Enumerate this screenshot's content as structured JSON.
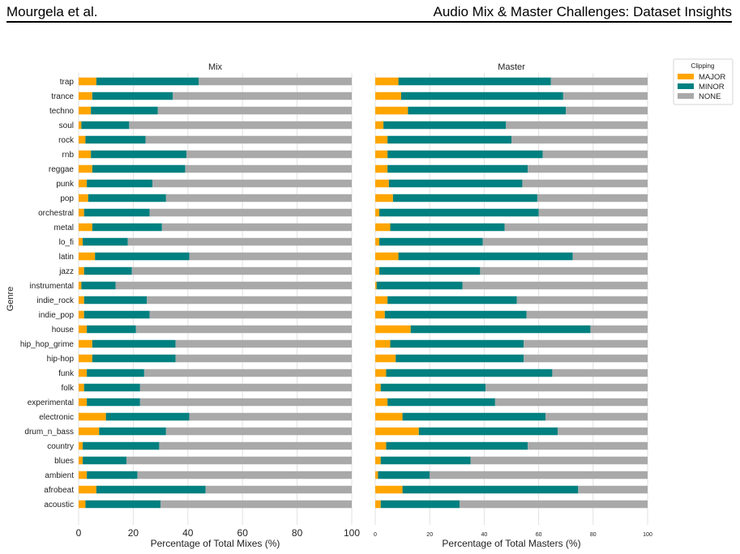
{
  "header": {
    "author": "Mourgela et al.",
    "title": "Audio Mix & Master Challenges: Dataset Insights"
  },
  "colors": {
    "MAJOR": "#FFA500",
    "MINOR": "#008080",
    "NONE": "#A9A9A9"
  },
  "chart_data": [
    {
      "type": "bar",
      "orientation": "horizontal",
      "stacked": true,
      "title": "Mix",
      "xlabel": "Percentage of Total Mixes (%)",
      "ylabel": "Genre",
      "xlim": [
        0,
        100
      ],
      "xticks": [
        0,
        20,
        40,
        60,
        80,
        100
      ],
      "grid": true,
      "categories": [
        "trap",
        "trance",
        "techno",
        "soul",
        "rock",
        "rnb",
        "reggae",
        "punk",
        "pop",
        "orchestral",
        "metal",
        "lo_fi",
        "latin",
        "jazz",
        "instrumental",
        "indie_rock",
        "indie_pop",
        "house",
        "hip_hop_grime",
        "hip-hop",
        "funk",
        "folk",
        "experimental",
        "electronic",
        "drum_n_bass",
        "country",
        "blues",
        "ambient",
        "afrobeat",
        "acoustic"
      ],
      "series": [
        {
          "name": "MAJOR",
          "values": [
            6.5,
            5,
            4.5,
            1,
            2.5,
            4.5,
            5,
            3,
            3.5,
            2,
            5,
            1.5,
            6,
            2,
            1,
            2,
            2,
            3,
            5,
            5,
            3,
            2,
            3,
            10,
            7.5,
            1.5,
            1.5,
            3,
            6.5,
            2.5
          ]
        },
        {
          "name": "MINOR",
          "values": [
            37.5,
            29.5,
            24.5,
            17.5,
            22,
            35,
            34,
            24,
            28.5,
            24,
            25.5,
            16.5,
            34.5,
            17.5,
            12.5,
            23,
            24,
            18,
            30.5,
            30.5,
            21,
            20.5,
            19.5,
            30.5,
            24.5,
            28,
            16,
            18.5,
            40,
            27.5
          ]
        },
        {
          "name": "NONE",
          "values": [
            56,
            65.5,
            71,
            81.5,
            75.5,
            60.5,
            61,
            73,
            68,
            74,
            69.5,
            82,
            59.5,
            80.5,
            86.5,
            75,
            74,
            79,
            64.5,
            64.5,
            76,
            77.5,
            77.5,
            59.5,
            68,
            70.5,
            82.5,
            78.5,
            53.5,
            70
          ]
        }
      ]
    },
    {
      "type": "bar",
      "orientation": "horizontal",
      "stacked": true,
      "title": "Master",
      "xlabel": "Percentage of Total Masters (%)",
      "xlim": [
        0,
        100
      ],
      "xticks": [
        0,
        20,
        40,
        60,
        80,
        100
      ],
      "grid": true,
      "categories": [
        "trap",
        "trance",
        "techno",
        "soul",
        "rock",
        "rnb",
        "reggae",
        "punk",
        "pop",
        "orchestral",
        "metal",
        "lo_fi",
        "latin",
        "jazz",
        "instrumental",
        "indie_rock",
        "indie_pop",
        "house",
        "hip_hop_grime",
        "hip-hop",
        "funk",
        "folk",
        "experimental",
        "electronic",
        "drum_n_bass",
        "country",
        "blues",
        "ambient",
        "afrobeat",
        "acoustic"
      ],
      "series": [
        {
          "name": "MAJOR",
          "values": [
            8.5,
            9.5,
            12,
            3,
            4.5,
            4.5,
            4.5,
            5,
            6.5,
            1.5,
            5.5,
            1.5,
            8.5,
            1.5,
            0.5,
            4.5,
            3.5,
            13,
            5.5,
            7.5,
            4,
            2,
            4.5,
            10,
            16,
            4,
            2,
            1,
            10,
            2
          ]
        },
        {
          "name": "MINOR",
          "values": [
            56,
            59.5,
            58,
            45,
            45.5,
            57,
            51.5,
            49,
            53,
            58.5,
            42,
            38,
            64,
            37,
            31.5,
            47.5,
            52,
            66,
            49,
            47,
            61,
            38.5,
            39.5,
            52.5,
            51,
            52,
            33,
            19,
            64.5,
            29
          ]
        },
        {
          "name": "NONE",
          "values": [
            35.5,
            31,
            30,
            52,
            50,
            38.5,
            44,
            46,
            40.5,
            40,
            52.5,
            60.5,
            27.5,
            61.5,
            68,
            48,
            44.5,
            21,
            45.5,
            45.5,
            35,
            59.5,
            56,
            37.5,
            33,
            44,
            65,
            80,
            25.5,
            69
          ]
        }
      ]
    }
  ],
  "legend": {
    "title": "Clipping",
    "placement": "right",
    "entries": [
      "MAJOR",
      "MINOR",
      "NONE"
    ]
  }
}
